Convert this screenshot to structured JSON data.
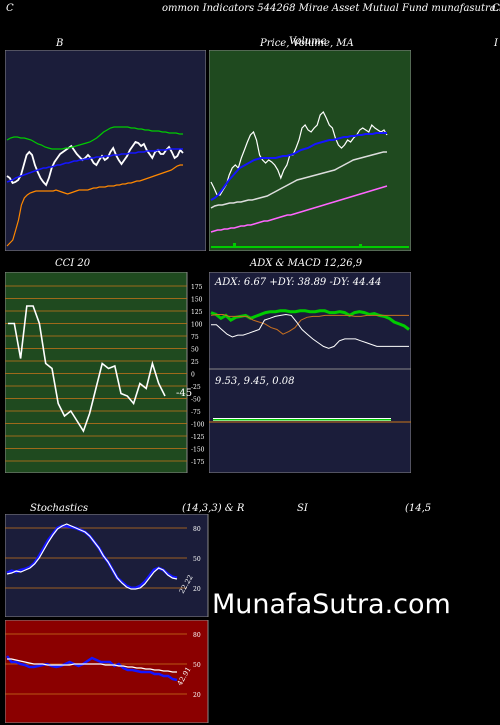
{
  "header": {
    "left_char": "C",
    "title": "ommon  Indicators 544268  Mirae   Asset Mutual Fund munafasutra.in",
    "right_char": "C"
  },
  "panels": {
    "bb_title": "B",
    "price_title": "Price,  Volume,  MA",
    "price_overlay": "Volume",
    "right_edge_char": "I",
    "cci_title": "CCI 20",
    "adx_title": "ADX  & MACD 12,26,9",
    "stoch_title": "Stochastics",
    "stoch_params": "(14,3,3) & R",
    "rsi_title": "SI",
    "rsi_params": "(14,5"
  },
  "watermark": "MunafaSutra.com",
  "colors": {
    "panel_navy": "#1b1d3a",
    "panel_green": "#1f4a1f",
    "panel_red": "#8b0000",
    "grid_orange": "#c8751b",
    "line_blue": "#1515ff",
    "line_green": "#00cc00"
  },
  "chart_data": [
    {
      "type": "line",
      "name": "bollinger",
      "title": "B",
      "series": [
        {
          "color": "#ffffff",
          "values": [
            176,
            178,
            183,
            182,
            180,
            175,
            165,
            155,
            152,
            155,
            165,
            172,
            178,
            182,
            185,
            178,
            168,
            162,
            158,
            154,
            152,
            150,
            148,
            146,
            150,
            154,
            157,
            160,
            158,
            155,
            158,
            163,
            165,
            160,
            156,
            160,
            158,
            152,
            148,
            155,
            160,
            164,
            160,
            156,
            150,
            146,
            142,
            143,
            146,
            144,
            150,
            154,
            158,
            152,
            150,
            154,
            154,
            150,
            147,
            152,
            158,
            156,
            150,
            153
          ]
        },
        {
          "color": "#1515ff",
          "values": [
            182,
            181,
            180,
            178,
            177,
            176,
            175,
            174,
            173,
            172,
            171,
            170,
            169,
            168,
            168,
            167,
            167,
            166,
            165,
            165,
            164,
            163,
            163,
            162,
            161,
            161,
            160,
            160,
            159,
            159,
            158,
            158,
            157,
            157,
            157,
            156,
            156,
            156,
            155,
            155,
            155,
            154,
            154,
            154,
            153,
            153,
            153,
            152,
            152,
            152,
            151,
            151,
            151,
            151,
            150,
            150,
            150,
            150,
            149,
            149,
            149,
            149,
            149,
            149
          ]
        },
        {
          "color": "#00cc00",
          "values": [
            140,
            138,
            137,
            137,
            138,
            138,
            139,
            140,
            142,
            144,
            145,
            147,
            148,
            149,
            149,
            149,
            149,
            148,
            148,
            147,
            146,
            145,
            144,
            143,
            142,
            140,
            138,
            135,
            132,
            130,
            128,
            127,
            127,
            127,
            127,
            127,
            128,
            128,
            129,
            129,
            130,
            130,
            131,
            131,
            131,
            132,
            132,
            133,
            133,
            133,
            134,
            134
          ]
        },
        {
          "color": "#ff8800",
          "values": [
            246,
            243,
            240,
            230,
            220,
            205,
            198,
            195,
            193,
            192,
            191,
            191,
            191,
            191,
            191,
            191,
            191,
            190,
            191,
            192,
            193,
            194,
            193,
            192,
            191,
            190,
            190,
            190,
            190,
            189,
            188,
            188,
            187,
            187,
            187,
            186,
            186,
            186,
            185,
            185,
            184,
            184,
            183,
            183,
            182,
            181,
            181,
            180,
            179,
            178,
            177,
            176,
            175,
            174,
            173,
            172,
            171,
            170,
            168,
            166,
            165,
            165
          ]
        }
      ]
    },
    {
      "type": "line",
      "name": "price_volume_ma",
      "title": "Price,  Volume,  MA",
      "series": [
        {
          "color": "#ffffff",
          "values": [
            182,
            188,
            195,
            195,
            190,
            185,
            175,
            168,
            165,
            168,
            158,
            150,
            142,
            135,
            132,
            140,
            155,
            160,
            163,
            160,
            162,
            165,
            170,
            178,
            170,
            165,
            155,
            155,
            148,
            140,
            128,
            125,
            130,
            132,
            128,
            125,
            115,
            112,
            118,
            125,
            128,
            138,
            145,
            148,
            145,
            140,
            142,
            138,
            135,
            130,
            128,
            130,
            132,
            125,
            128,
            130,
            132,
            130,
            135
          ]
        },
        {
          "color": "#1515ff",
          "values": [
            200,
            198,
            195,
            190,
            185,
            180,
            176,
            172,
            168,
            166,
            164,
            162,
            160,
            159,
            158,
            158,
            158,
            158,
            158,
            157,
            156,
            156,
            155,
            154,
            152,
            150,
            149,
            148,
            146,
            144,
            143,
            142,
            141,
            140,
            140,
            139,
            138,
            137,
            137,
            136,
            136,
            135,
            135,
            134,
            134,
            134,
            133,
            133,
            133,
            133
          ]
        },
        {
          "color": "#dddddd",
          "values": [
            208,
            206,
            205,
            205,
            204,
            203,
            203,
            202,
            202,
            201,
            200,
            200,
            199,
            198,
            197,
            196,
            194,
            192,
            190,
            188,
            186,
            184,
            182,
            180,
            179,
            178,
            177,
            176,
            175,
            174,
            173,
            172,
            171,
            170,
            168,
            166,
            164,
            162,
            160,
            159,
            158,
            157,
            156,
            155,
            154,
            153,
            152,
            152
          ]
        },
        {
          "color": "#ff66ff",
          "values": [
            232,
            231,
            230,
            230,
            229,
            229,
            228,
            228,
            227,
            226,
            226,
            225,
            225,
            224,
            223,
            222,
            221,
            221,
            220,
            219,
            218,
            217,
            216,
            215,
            215,
            214,
            213,
            212,
            211,
            210,
            209,
            208,
            207,
            206,
            205,
            204,
            203,
            202,
            201,
            200,
            199,
            198,
            197,
            196,
            195,
            194,
            193,
            192,
            191,
            190,
            189,
            188,
            187,
            186
          ]
        }
      ]
    },
    {
      "type": "line",
      "name": "cci",
      "title": "CCI 20",
      "y_ticks": [
        "175",
        "150",
        "125",
        "100",
        "75",
        "50",
        "25",
        "0",
        "-25",
        "-50",
        "-75",
        "-100",
        "-125",
        "-150",
        "-175"
      ],
      "last_value": "-45",
      "series": [
        {
          "color": "#ffffff",
          "values": [
            100,
            100,
            30,
            135,
            135,
            100,
            20,
            10,
            -60,
            -85,
            -75,
            -95,
            -115,
            -80,
            -30,
            20,
            10,
            15,
            -40,
            -45,
            -60,
            -20,
            -30,
            20,
            -20,
            -45
          ]
        }
      ]
    },
    {
      "type": "line",
      "name": "adx_macd",
      "title": "ADX  & MACD 12,26,9",
      "adx_readout": "ADX: 6.67 +DY: 38.89 -DY: 44.44",
      "macd_readout": "9.53,  9.45,  0.08",
      "series": [
        {
          "color": "#00cc00",
          "values": [
            42,
            44,
            48,
            45,
            50,
            47,
            46,
            45,
            48,
            46,
            44,
            42,
            41,
            41,
            40,
            40,
            41,
            41,
            40,
            40,
            41,
            41,
            40,
            40,
            42,
            42,
            41,
            42,
            45,
            42,
            41,
            42,
            44,
            43,
            45,
            46,
            48,
            52,
            54,
            56,
            60
          ]
        },
        {
          "color": "#c87020",
          "values": [
            45,
            44,
            44,
            46,
            46,
            46,
            46,
            50,
            52,
            54,
            58,
            60,
            65,
            62,
            58,
            50,
            47,
            46,
            46,
            45,
            45,
            45,
            45,
            45,
            46,
            46,
            45,
            45,
            45,
            45,
            45,
            45,
            45,
            45
          ]
        },
        {
          "color": "#ffffff",
          "values": [
            55,
            55,
            60,
            65,
            68,
            66,
            66,
            64,
            62,
            60,
            50,
            48,
            46,
            45,
            44,
            45,
            52,
            60,
            65,
            70,
            74,
            78,
            80,
            78,
            72,
            70,
            70,
            70,
            72,
            74,
            76,
            78,
            78,
            78,
            78,
            78,
            78,
            78
          ]
        }
      ]
    },
    {
      "type": "line",
      "name": "stochastics",
      "title": "Stochastics",
      "params": "(14,3,3) & R",
      "y_ticks": [
        "80",
        "50",
        "20"
      ],
      "last_value": "22.22",
      "series": [
        {
          "color": "#1515ff",
          "values": [
            35,
            37,
            36,
            38,
            39,
            41,
            45,
            52,
            60,
            68,
            74,
            80,
            82,
            82,
            81,
            80,
            78,
            76,
            72,
            66,
            60,
            52,
            46,
            38,
            30,
            26,
            22,
            20,
            20,
            22,
            26,
            32,
            38,
            40,
            38,
            34,
            31,
            30
          ]
        },
        {
          "color": "#ffffff",
          "values": [
            34,
            35,
            37,
            36,
            38,
            40,
            44,
            50,
            58,
            66,
            73,
            79,
            82,
            84,
            82,
            80,
            78,
            76,
            72,
            66,
            60,
            52,
            46,
            38,
            30,
            25,
            21,
            19,
            19,
            20,
            24,
            30,
            36,
            40,
            38,
            33,
            30,
            29
          ]
        }
      ]
    },
    {
      "type": "line",
      "name": "rsi",
      "title": "SI",
      "params": "(14,5",
      "y_ticks": [
        "80",
        "50",
        "20"
      ],
      "last_value": "42.91",
      "series": [
        {
          "color": "#1515ff",
          "values": [
            58,
            52,
            52,
            50,
            49,
            47,
            47,
            48,
            49,
            50,
            48,
            47,
            48,
            50,
            52,
            50,
            48,
            50,
            53,
            56,
            54,
            52,
            52,
            52,
            48,
            50,
            46,
            44,
            44,
            43,
            42,
            42,
            42,
            40,
            40,
            38,
            38,
            35,
            34
          ]
        },
        {
          "color": "#ffffff",
          "values": [
            55,
            55,
            54,
            53,
            52,
            51,
            50,
            50,
            50,
            49,
            49,
            49,
            49,
            49,
            49,
            50,
            50,
            50,
            50,
            50,
            50,
            50,
            49,
            49,
            49,
            48,
            48,
            47,
            47,
            46,
            46,
            45,
            45,
            44,
            44,
            43,
            43,
            42,
            42
          ]
        }
      ]
    }
  ]
}
